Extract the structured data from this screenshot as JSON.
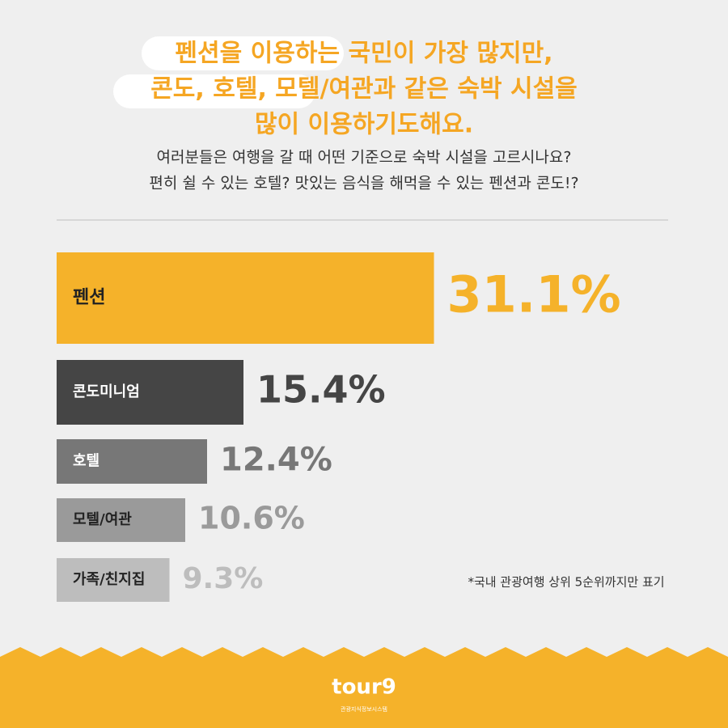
{
  "chart_data": {
    "type": "bar",
    "title": [
      "펜션을 이용하는 국민이 가장 많지만,",
      "콘도, 호텔, 모텔/여관과 같은 숙박 시설을",
      "많이 이용하기도해요."
    ],
    "subtitle": [
      "여러분들은 여행을 갈 때 어떤 기준으로 숙박 시설을 고르시나요?",
      "편히 쉴 수 있는 호텔? 맛있는 음식을 해먹을 수 있는 펜션과 콘도!?"
    ],
    "categories": [
      "펜션",
      "콘도미니엄",
      "호텔",
      "모텔/여관",
      "가족/친지집"
    ],
    "values": [
      31.1,
      15.4,
      12.4,
      10.6,
      9.3
    ],
    "value_labels": [
      "31.1%",
      "15.4%",
      "12.4%",
      "10.6%",
      "9.3%"
    ],
    "colors": [
      "#f5b22a",
      "#454545",
      "#777777",
      "#9a9a9a",
      "#bdbdbd"
    ],
    "note": "*국내 관광여행 상위 5순위까지만 표기",
    "logo": "tour9",
    "logo_caption": "관광지식정보시스템"
  }
}
